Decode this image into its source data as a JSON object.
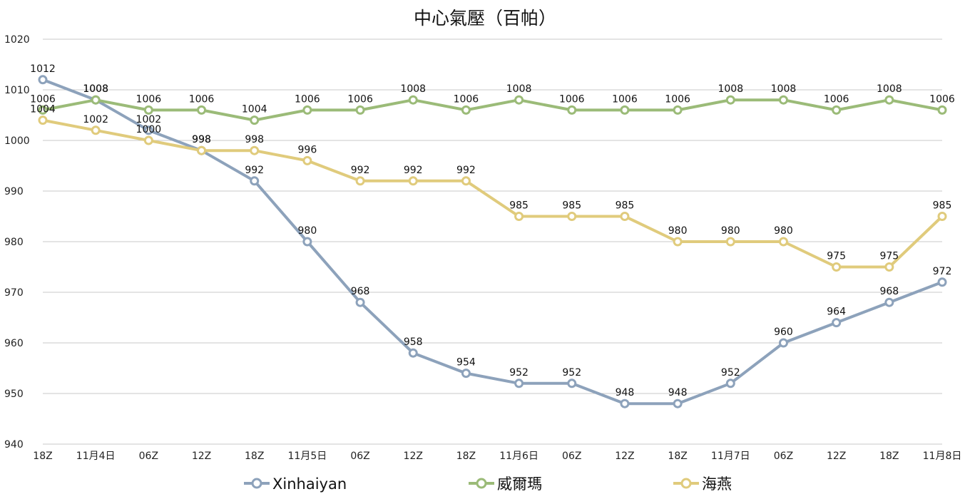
{
  "chart_data": {
    "type": "line",
    "title": "中心氣壓（百帕）",
    "xlabel": "",
    "ylabel": "",
    "ylim": [
      940,
      1020
    ],
    "yticks": [
      940,
      950,
      960,
      970,
      980,
      990,
      1000,
      1010,
      1020
    ],
    "categories": [
      "18Z",
      "11月4日",
      "06Z",
      "12Z",
      "18Z",
      "11月5日",
      "06Z",
      "12Z",
      "18Z",
      "11月6日",
      "06Z",
      "12Z",
      "18Z",
      "11月7日",
      "06Z",
      "12Z",
      "18Z",
      "11月8日"
    ],
    "grid": true,
    "legend": "bottom",
    "series": [
      {
        "name": "Xinhaiyan",
        "color": "#8da2bb",
        "values": [
          1012,
          1008,
          1002,
          998,
          992,
          980,
          968,
          958,
          954,
          952,
          952,
          948,
          948,
          952,
          960,
          964,
          968,
          972
        ]
      },
      {
        "name": "威爾瑪",
        "color": "#9bbb78",
        "values": [
          1006,
          1008,
          1006,
          1006,
          1004,
          1006,
          1006,
          1008,
          1006,
          1008,
          1006,
          1006,
          1006,
          1008,
          1008,
          1006,
          1008,
          1006
        ]
      },
      {
        "name": "海燕",
        "color": "#e0cb7c",
        "values": [
          1004,
          1002,
          1000,
          998,
          998,
          996,
          992,
          992,
          992,
          985,
          985,
          985,
          980,
          980,
          980,
          975,
          975,
          985
        ]
      }
    ]
  }
}
